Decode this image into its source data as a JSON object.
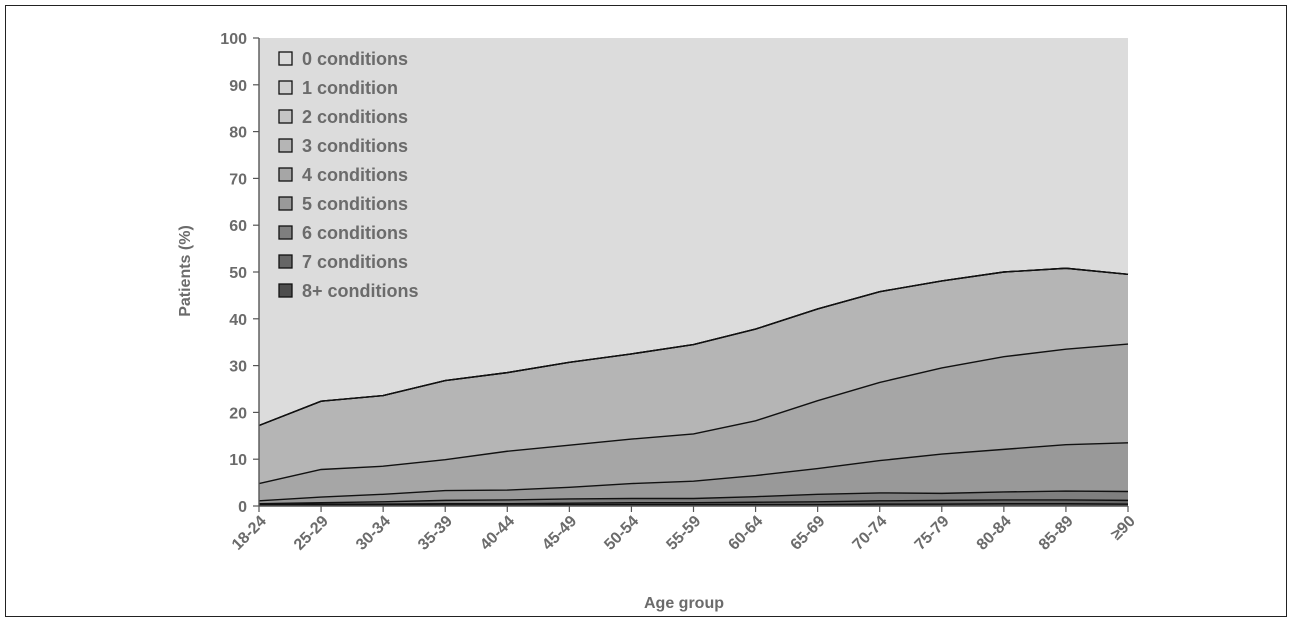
{
  "chart_data": {
    "type": "area",
    "stacked": true,
    "xlabel": "Age group",
    "ylabel": "Patients (%)",
    "ylim": [
      0,
      100
    ],
    "yticks": [
      0,
      10,
      20,
      30,
      40,
      50,
      60,
      70,
      80,
      90,
      100
    ],
    "grid": false,
    "legend_position": "top-left",
    "categories": [
      "18-24",
      "25-29",
      "30-34",
      "35-39",
      "40-44",
      "45-49",
      "50-54",
      "55-59",
      "60-64",
      "65-69",
      "70-74",
      "75-79",
      "80-84",
      "85-89",
      "≥90"
    ],
    "series": [
      {
        "name": "8+ conditions",
        "color": "#4d4d4d",
        "values": [
          0.2,
          0.2,
          0.2,
          0.2,
          0.2,
          0.3,
          0.3,
          0.3,
          0.3,
          0.3,
          0.4,
          0.4,
          0.5,
          0.5,
          0.4
        ]
      },
      {
        "name": "7 conditions",
        "color": "#666666",
        "values": [
          0.1,
          0.2,
          0.2,
          0.3,
          0.3,
          0.3,
          0.4,
          0.4,
          0.5,
          0.6,
          0.7,
          0.8,
          0.8,
          0.8,
          0.8
        ]
      },
      {
        "name": "6 conditions",
        "color": "#7f7f7f",
        "values": [
          0.2,
          0.3,
          0.5,
          0.7,
          0.8,
          0.9,
          0.9,
          0.9,
          1.2,
          1.6,
          1.7,
          1.5,
          1.7,
          1.9,
          1.9
        ]
      },
      {
        "name": "5 conditions",
        "color": "#999999",
        "values": [
          0.6,
          1.2,
          1.6,
          2.1,
          2.1,
          2.5,
          3.2,
          3.7,
          4.5,
          5.5,
          6.9,
          8.4,
          9.1,
          9.9,
          10.4
        ]
      },
      {
        "name": "4 conditions",
        "color": "#a6a6a6",
        "values": [
          3.7,
          5.9,
          6.0,
          6.6,
          8.3,
          9.0,
          9.5,
          10.1,
          11.7,
          14.5,
          16.7,
          18.4,
          19.8,
          20.4,
          21.1
        ]
      },
      {
        "name": "3 conditions",
        "color": "#b5b5b5",
        "values": [
          12.4,
          14.6,
          15.1,
          16.9,
          16.8,
          17.7,
          18.2,
          19.1,
          19.6,
          19.6,
          19.4,
          18.6,
          18.1,
          17.3,
          14.9
        ]
      },
      {
        "name": "2 conditions",
        "color": "#c4c4c4",
        "values": [
          0,
          0,
          0,
          0,
          0,
          0,
          0,
          0,
          0,
          0,
          0,
          0,
          0,
          0,
          0
        ]
      },
      {
        "name": "1 condition",
        "color": "#d0d0d0",
        "values": [
          0,
          0,
          0,
          0,
          0,
          0,
          0,
          0,
          0,
          0,
          0,
          0,
          0,
          0,
          0
        ]
      },
      {
        "name": "0 conditions",
        "color": "#dcdcdc",
        "values": [
          82.8,
          77.6,
          76.4,
          73.2,
          71.5,
          69.3,
          67.5,
          65.5,
          62.2,
          57.9,
          54.2,
          51.9,
          50.0,
          49.2,
          50.5
        ]
      }
    ],
    "legend_order": [
      "0 conditions",
      "1 condition",
      "2 conditions",
      "3 conditions",
      "4 conditions",
      "5 conditions",
      "6 conditions",
      "7 conditions",
      "8+ conditions"
    ]
  }
}
